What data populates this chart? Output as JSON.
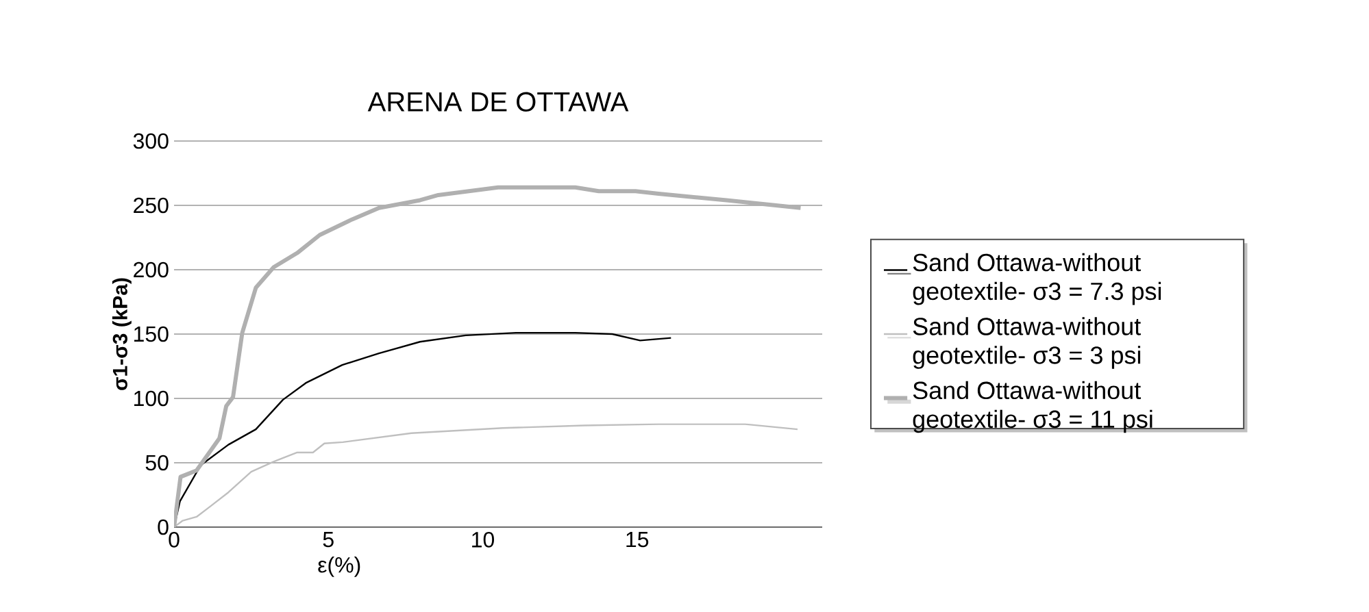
{
  "chart_data": {
    "type": "line",
    "title": "ARENA DE OTTAWA",
    "xlabel": "ε(%)",
    "ylabel": "σ1-σ3 (kPa)",
    "xlim": [
      0,
      21
    ],
    "xticks": [
      0,
      5,
      10,
      15
    ],
    "ylim": [
      0,
      300
    ],
    "yticks": [
      0,
      50,
      100,
      150,
      200,
      250,
      300
    ],
    "grid": "y",
    "legend": "right",
    "series": [
      {
        "name": "Sand Ottawa-without geotextile- σ3 = 7.3 psi",
        "color": "#000000",
        "x": [
          0,
          0.19,
          0.86,
          1.76,
          2.65,
          3.53,
          4.27,
          5.45,
          6.64,
          7.97,
          9.45,
          11.08,
          13.0,
          14.2,
          15.1,
          16.1
        ],
        "values": [
          0,
          20,
          48,
          64,
          76,
          99,
          112,
          126,
          135,
          144,
          149,
          151,
          151,
          150,
          145,
          147
        ]
      },
      {
        "name": "Sand Ottawa-without geotextile- σ3 = 3 psi",
        "color": "#bfbfbf",
        "x": [
          0,
          0.28,
          0.73,
          1.17,
          1.76,
          2.5,
          3.24,
          3.99,
          4.5,
          4.87,
          5.47,
          7.69,
          10.65,
          13.3,
          15.7,
          18.5,
          20.2
        ],
        "values": [
          0,
          5,
          8,
          16,
          27,
          43,
          51,
          58,
          58,
          65,
          66,
          73,
          77,
          79,
          80,
          80,
          76
        ]
      },
      {
        "name": "Sand Ottawa-without geotextile- σ3 = 11 psi",
        "color": "#b0b0b0",
        "x": [
          0,
          0.21,
          0.73,
          1.47,
          1.69,
          1.91,
          2.21,
          2.65,
          3.23,
          3.99,
          4.72,
          5.76,
          6.64,
          7.97,
          8.56,
          10.5,
          13.0,
          13.76,
          14.95,
          15.7,
          17.9,
          20.3
        ],
        "values": [
          0,
          39,
          44,
          69,
          94,
          101,
          151,
          186,
          202,
          213,
          227,
          239,
          248,
          254,
          258,
          264,
          264,
          261,
          261,
          259,
          254,
          248
        ]
      }
    ]
  }
}
